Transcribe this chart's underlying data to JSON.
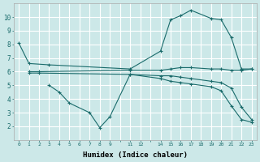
{
  "xlabel": "Humidex (Indice chaleur)",
  "bg_color": "#cce8e8",
  "grid_color": "#ffffff",
  "line_color": "#1a6b6b",
  "ylim": [
    1,
    11
  ],
  "yticks": [
    2,
    3,
    4,
    5,
    6,
    7,
    8,
    9,
    10
  ],
  "xtick_labels": [
    "0",
    "1",
    "2",
    "3",
    "4",
    "5",
    "6",
    "7",
    "8",
    "9",
    "",
    "11",
    "12",
    "",
    "14",
    "15",
    "16",
    "17",
    "18",
    "19",
    "20",
    "21",
    "22",
    "23"
  ],
  "num_xticks": 24,
  "series": [
    {
      "xi": [
        0,
        1,
        3,
        11,
        14,
        15,
        16,
        17,
        19,
        20,
        21,
        22,
        23
      ],
      "y": [
        8.1,
        6.6,
        6.5,
        6.2,
        7.5,
        9.8,
        10.1,
        10.5,
        9.9,
        9.8,
        8.5,
        6.2,
        6.2
      ]
    },
    {
      "xi": [
        1,
        2,
        11,
        14,
        15,
        16,
        17,
        19,
        20,
        21,
        22,
        23
      ],
      "y": [
        6.0,
        6.0,
        6.1,
        6.1,
        6.2,
        6.3,
        6.3,
        6.2,
        6.2,
        6.1,
        6.1,
        6.2
      ]
    },
    {
      "xi": [
        1,
        2,
        11,
        14,
        15,
        16,
        17,
        19,
        20,
        21,
        22,
        23
      ],
      "y": [
        5.9,
        5.9,
        5.8,
        5.7,
        5.7,
        5.6,
        5.5,
        5.3,
        5.2,
        4.8,
        3.4,
        2.5
      ]
    },
    {
      "xi": [
        3,
        4,
        5,
        7,
        8,
        9,
        11,
        14,
        15,
        16,
        17,
        19,
        20,
        21,
        22,
        23
      ],
      "y": [
        5.0,
        4.5,
        3.7,
        3.0,
        1.9,
        2.7,
        5.8,
        5.5,
        5.3,
        5.2,
        5.1,
        4.9,
        4.6,
        3.5,
        2.5,
        2.3
      ]
    }
  ]
}
